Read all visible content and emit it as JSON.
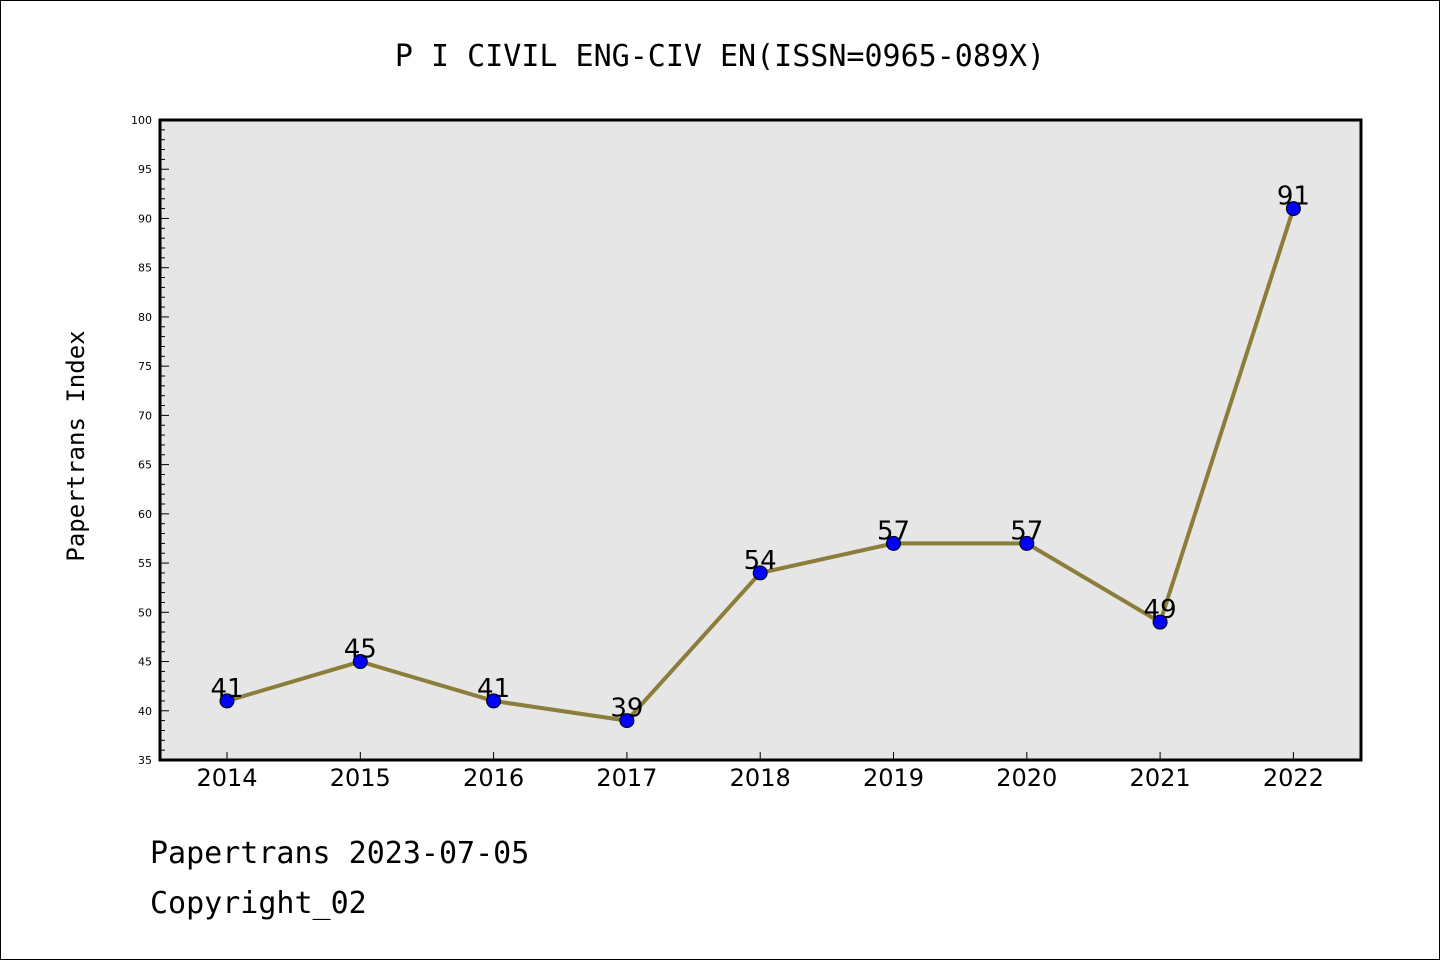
{
  "chart_data": {
    "type": "line",
    "title": "P I CIVIL ENG-CIV EN(ISSN=0965-089X)",
    "xlabel": "",
    "ylabel": "Papertrans Index",
    "categories": [
      "2014",
      "2015",
      "2016",
      "2017",
      "2018",
      "2019",
      "2020",
      "2021",
      "2022"
    ],
    "values": [
      41,
      45,
      41,
      39,
      54,
      57,
      57,
      49,
      91
    ],
    "ylim": [
      35,
      100
    ],
    "yticks": [
      35,
      40,
      45,
      50,
      55,
      60,
      65,
      70,
      75,
      80,
      85,
      90,
      95,
      100
    ],
    "grid": false,
    "legend": "none",
    "colors": {
      "line": "#8b7d3a",
      "marker": "#0000ff",
      "plot_background": "#e6e6e6"
    }
  },
  "footer": {
    "line1": "Papertrans 2023-07-05",
    "line2": "Copyright_02"
  }
}
